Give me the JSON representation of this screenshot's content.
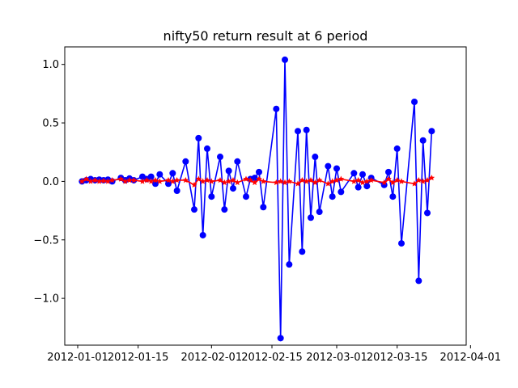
{
  "chart_data": {
    "type": "line",
    "title": "nifty50 return result at 6 period",
    "xlabel": "",
    "ylabel": "",
    "x_range": [
      "2011-12-29",
      "2012-03-31"
    ],
    "ylim": [
      -1.4,
      1.15
    ],
    "x_ticks": [
      {
        "date": "2012-01-01",
        "label": "2012-01-01"
      },
      {
        "date": "2012-01-15",
        "label": "2012-01-15"
      },
      {
        "date": "2012-02-01",
        "label": "2012-02-01"
      },
      {
        "date": "2012-02-15",
        "label": "2012-02-15"
      },
      {
        "date": "2012-03-01",
        "label": "2012-03-01"
      },
      {
        "date": "2012-03-15",
        "label": "2012-03-15"
      },
      {
        "date": "2012-04-01",
        "label": "2012-04-01"
      }
    ],
    "y_ticks": [
      {
        "value": 1.0,
        "label": "1.0"
      },
      {
        "value": 0.5,
        "label": "0.5"
      },
      {
        "value": 0.0,
        "label": "0.0"
      },
      {
        "value": -0.5,
        "label": "−0.5"
      },
      {
        "value": -1.0,
        "label": "−1.0"
      }
    ],
    "grid": false,
    "legend": "none",
    "series": [
      {
        "color": "#0000ff",
        "marker": "circle",
        "points": [
          {
            "x": "2012-01-02",
            "y": 0.0
          },
          {
            "x": "2012-01-03",
            "y": 0.01
          },
          {
            "x": "2012-01-04",
            "y": 0.02
          },
          {
            "x": "2012-01-05",
            "y": 0.01
          },
          {
            "x": "2012-01-06",
            "y": 0.015
          },
          {
            "x": "2012-01-07",
            "y": 0.01
          },
          {
            "x": "2012-01-08",
            "y": 0.015
          },
          {
            "x": "2012-01-09",
            "y": 0.0
          },
          {
            "x": "2012-01-11",
            "y": 0.03
          },
          {
            "x": "2012-01-12",
            "y": 0.01
          },
          {
            "x": "2012-01-13",
            "y": 0.025
          },
          {
            "x": "2012-01-14",
            "y": 0.01
          },
          {
            "x": "2012-01-16",
            "y": 0.04
          },
          {
            "x": "2012-01-17",
            "y": 0.02
          },
          {
            "x": "2012-01-18",
            "y": 0.04
          },
          {
            "x": "2012-01-19",
            "y": -0.02
          },
          {
            "x": "2012-01-20",
            "y": 0.06
          },
          {
            "x": "2012-01-22",
            "y": -0.02
          },
          {
            "x": "2012-01-23",
            "y": 0.07
          },
          {
            "x": "2012-01-24",
            "y": -0.08
          },
          {
            "x": "2012-01-26",
            "y": 0.17
          },
          {
            "x": "2012-01-28",
            "y": -0.24
          },
          {
            "x": "2012-01-29",
            "y": 0.37
          },
          {
            "x": "2012-01-30",
            "y": -0.46
          },
          {
            "x": "2012-01-31",
            "y": 0.28
          },
          {
            "x": "2012-02-01",
            "y": -0.13
          },
          {
            "x": "2012-02-03",
            "y": 0.21
          },
          {
            "x": "2012-02-04",
            "y": -0.24
          },
          {
            "x": "2012-02-05",
            "y": 0.09
          },
          {
            "x": "2012-02-06",
            "y": -0.06
          },
          {
            "x": "2012-02-07",
            "y": 0.17
          },
          {
            "x": "2012-02-09",
            "y": -0.13
          },
          {
            "x": "2012-02-10",
            "y": 0.02
          },
          {
            "x": "2012-02-11",
            "y": 0.03
          },
          {
            "x": "2012-02-12",
            "y": 0.08
          },
          {
            "x": "2012-02-13",
            "y": -0.22
          },
          {
            "x": "2012-02-16",
            "y": 0.62
          },
          {
            "x": "2012-02-17",
            "y": -1.34
          },
          {
            "x": "2012-02-18",
            "y": 1.04
          },
          {
            "x": "2012-02-19",
            "y": -0.71
          },
          {
            "x": "2012-02-21",
            "y": 0.43
          },
          {
            "x": "2012-02-22",
            "y": -0.6
          },
          {
            "x": "2012-02-23",
            "y": 0.44
          },
          {
            "x": "2012-02-24",
            "y": -0.31
          },
          {
            "x": "2012-02-25",
            "y": 0.21
          },
          {
            "x": "2012-02-26",
            "y": -0.26
          },
          {
            "x": "2012-02-28",
            "y": 0.13
          },
          {
            "x": "2012-02-29",
            "y": -0.13
          },
          {
            "x": "2012-03-01",
            "y": 0.11
          },
          {
            "x": "2012-03-02",
            "y": -0.09
          },
          {
            "x": "2012-03-05",
            "y": 0.07
          },
          {
            "x": "2012-03-06",
            "y": -0.05
          },
          {
            "x": "2012-03-07",
            "y": 0.06
          },
          {
            "x": "2012-03-08",
            "y": -0.04
          },
          {
            "x": "2012-03-09",
            "y": 0.03
          },
          {
            "x": "2012-03-12",
            "y": -0.03
          },
          {
            "x": "2012-03-13",
            "y": 0.08
          },
          {
            "x": "2012-03-14",
            "y": -0.13
          },
          {
            "x": "2012-03-15",
            "y": 0.28
          },
          {
            "x": "2012-03-16",
            "y": -0.53
          },
          {
            "x": "2012-03-19",
            "y": 0.68
          },
          {
            "x": "2012-03-20",
            "y": -0.85
          },
          {
            "x": "2012-03-21",
            "y": 0.35
          },
          {
            "x": "2012-03-22",
            "y": -0.27
          },
          {
            "x": "2012-03-23",
            "y": 0.43
          }
        ]
      },
      {
        "color": "#ff0000",
        "marker": "star",
        "points": [
          {
            "x": "2012-01-02",
            "y": 0.0
          },
          {
            "x": "2012-01-03",
            "y": 0.02
          },
          {
            "x": "2012-01-04",
            "y": 0.0
          },
          {
            "x": "2012-01-05",
            "y": 0.01
          },
          {
            "x": "2012-01-06",
            "y": 0.0
          },
          {
            "x": "2012-01-07",
            "y": 0.005
          },
          {
            "x": "2012-01-08",
            "y": 0.0
          },
          {
            "x": "2012-01-09",
            "y": 0.01
          },
          {
            "x": "2012-01-11",
            "y": 0.02
          },
          {
            "x": "2012-01-12",
            "y": 0.0
          },
          {
            "x": "2012-01-13",
            "y": 0.01
          },
          {
            "x": "2012-01-14",
            "y": 0.01
          },
          {
            "x": "2012-01-16",
            "y": 0.0
          },
          {
            "x": "2012-01-17",
            "y": 0.01
          },
          {
            "x": "2012-01-18",
            "y": 0.0
          },
          {
            "x": "2012-01-19",
            "y": 0.01
          },
          {
            "x": "2012-01-20",
            "y": 0.0
          },
          {
            "x": "2012-01-22",
            "y": 0.01
          },
          {
            "x": "2012-01-23",
            "y": 0.0
          },
          {
            "x": "2012-01-24",
            "y": 0.01
          },
          {
            "x": "2012-01-26",
            "y": 0.01
          },
          {
            "x": "2012-01-28",
            "y": -0.03
          },
          {
            "x": "2012-01-29",
            "y": 0.02
          },
          {
            "x": "2012-01-30",
            "y": 0.0
          },
          {
            "x": "2012-01-31",
            "y": 0.01
          },
          {
            "x": "2012-02-01",
            "y": 0.0
          },
          {
            "x": "2012-02-03",
            "y": 0.01
          },
          {
            "x": "2012-02-04",
            "y": -0.01
          },
          {
            "x": "2012-02-05",
            "y": 0.0
          },
          {
            "x": "2012-02-06",
            "y": 0.01
          },
          {
            "x": "2012-02-07",
            "y": -0.01
          },
          {
            "x": "2012-02-09",
            "y": 0.02
          },
          {
            "x": "2012-02-10",
            "y": 0.01
          },
          {
            "x": "2012-02-11",
            "y": -0.01
          },
          {
            "x": "2012-02-12",
            "y": 0.02
          },
          {
            "x": "2012-02-13",
            "y": 0.0
          },
          {
            "x": "2012-02-16",
            "y": -0.01
          },
          {
            "x": "2012-02-17",
            "y": 0.0
          },
          {
            "x": "2012-02-18",
            "y": -0.01
          },
          {
            "x": "2012-02-19",
            "y": 0.0
          },
          {
            "x": "2012-02-21",
            "y": -0.02
          },
          {
            "x": "2012-02-22",
            "y": 0.01
          },
          {
            "x": "2012-02-23",
            "y": 0.0
          },
          {
            "x": "2012-02-24",
            "y": 0.01
          },
          {
            "x": "2012-02-25",
            "y": -0.01
          },
          {
            "x": "2012-02-26",
            "y": 0.01
          },
          {
            "x": "2012-02-28",
            "y": -0.02
          },
          {
            "x": "2012-02-29",
            "y": 0.0
          },
          {
            "x": "2012-03-01",
            "y": 0.01
          },
          {
            "x": "2012-03-02",
            "y": 0.02
          },
          {
            "x": "2012-03-05",
            "y": 0.0
          },
          {
            "x": "2012-03-06",
            "y": 0.01
          },
          {
            "x": "2012-03-07",
            "y": -0.01
          },
          {
            "x": "2012-03-08",
            "y": 0.0
          },
          {
            "x": "2012-03-09",
            "y": 0.01
          },
          {
            "x": "2012-03-12",
            "y": -0.01
          },
          {
            "x": "2012-03-13",
            "y": 0.02
          },
          {
            "x": "2012-03-14",
            "y": -0.01
          },
          {
            "x": "2012-03-15",
            "y": 0.01
          },
          {
            "x": "2012-03-16",
            "y": 0.0
          },
          {
            "x": "2012-03-19",
            "y": -0.02
          },
          {
            "x": "2012-03-20",
            "y": 0.01
          },
          {
            "x": "2012-03-21",
            "y": 0.0
          },
          {
            "x": "2012-03-22",
            "y": 0.01
          },
          {
            "x": "2012-03-23",
            "y": 0.03
          }
        ]
      }
    ]
  }
}
